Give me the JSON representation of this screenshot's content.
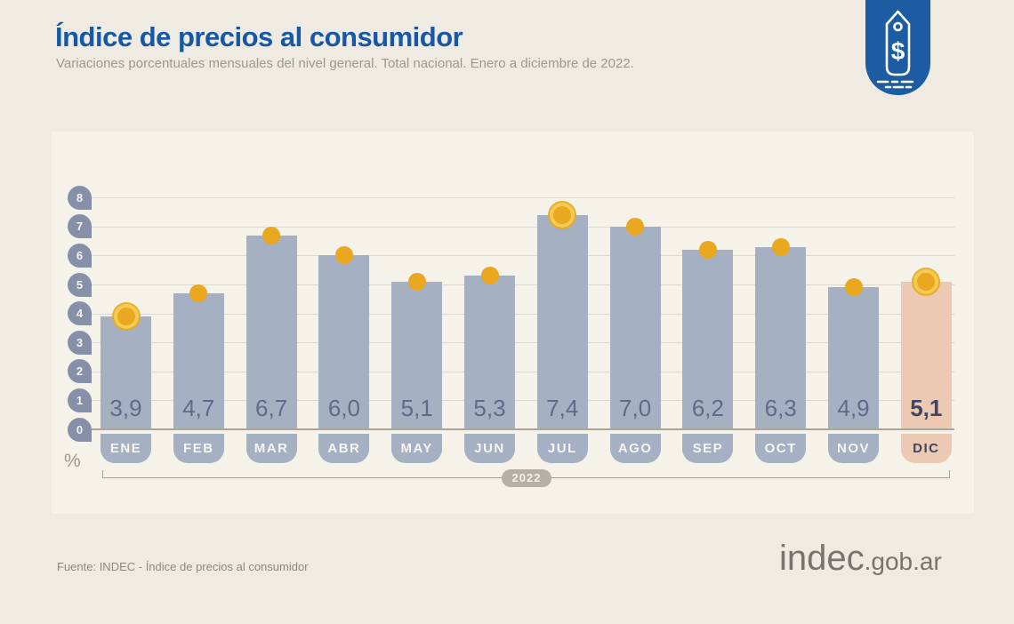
{
  "header": {
    "title": "Índice de precios al consumidor",
    "subtitle": "Variaciones porcentuales mensuales del nivel general. Total nacional. Enero a diciembre de 2022.",
    "badge_icon": "price-tag-icon"
  },
  "chart_data": {
    "type": "bar",
    "title": "Índice de precios al consumidor",
    "subtitle": "Variaciones porcentuales mensuales del nivel general. Total nacional. Enero a diciembre de 2022.",
    "categories": [
      "ENE",
      "FEB",
      "MAR",
      "ABR",
      "MAY",
      "JUN",
      "JUL",
      "AGO",
      "SEP",
      "OCT",
      "NOV",
      "DIC"
    ],
    "values": [
      3.9,
      4.7,
      6.7,
      6.0,
      5.1,
      5.3,
      7.4,
      7.0,
      6.2,
      6.3,
      4.9,
      5.1
    ],
    "value_labels": [
      "3,9",
      "4,7",
      "6,7",
      "6,0",
      "5,1",
      "5,3",
      "7,4",
      "7,0",
      "6,2",
      "6,3",
      "4,9",
      "5,1"
    ],
    "highlighted_category": "DIC",
    "ringed_dot_categories": [
      "ENE",
      "JUL",
      "DIC"
    ],
    "y_ticks": [
      0,
      1,
      2,
      3,
      4,
      5,
      6,
      7,
      8
    ],
    "ylim": [
      0,
      8
    ],
    "unit": "%",
    "period_label": "2022",
    "grid": true,
    "legend": false,
    "colors": {
      "page_bg": "#efebe2",
      "panel_bg": "#f5f2ea",
      "title": "#1558a7",
      "bar": "#a6b0c3",
      "bar_highlight": "#ecc9b3",
      "dot": "#e9a81f",
      "dot_ring": "#f4ca52",
      "value_text": "#5f6c87",
      "value_text_highlight": "#3f4565",
      "month_text": "#f5f4f0",
      "month_text_highlight": "#3f4565",
      "axis_badge": "#8690a8",
      "gridline": "#dcd8cd",
      "baseline": "#aaa69c",
      "corner_badge_bg": "#1c5ca3"
    }
  },
  "footer": {
    "source": "Fuente: INDEC - Índice de precios al consumidor",
    "logo_main": "indec",
    "logo_suffix": ".gob.ar"
  }
}
